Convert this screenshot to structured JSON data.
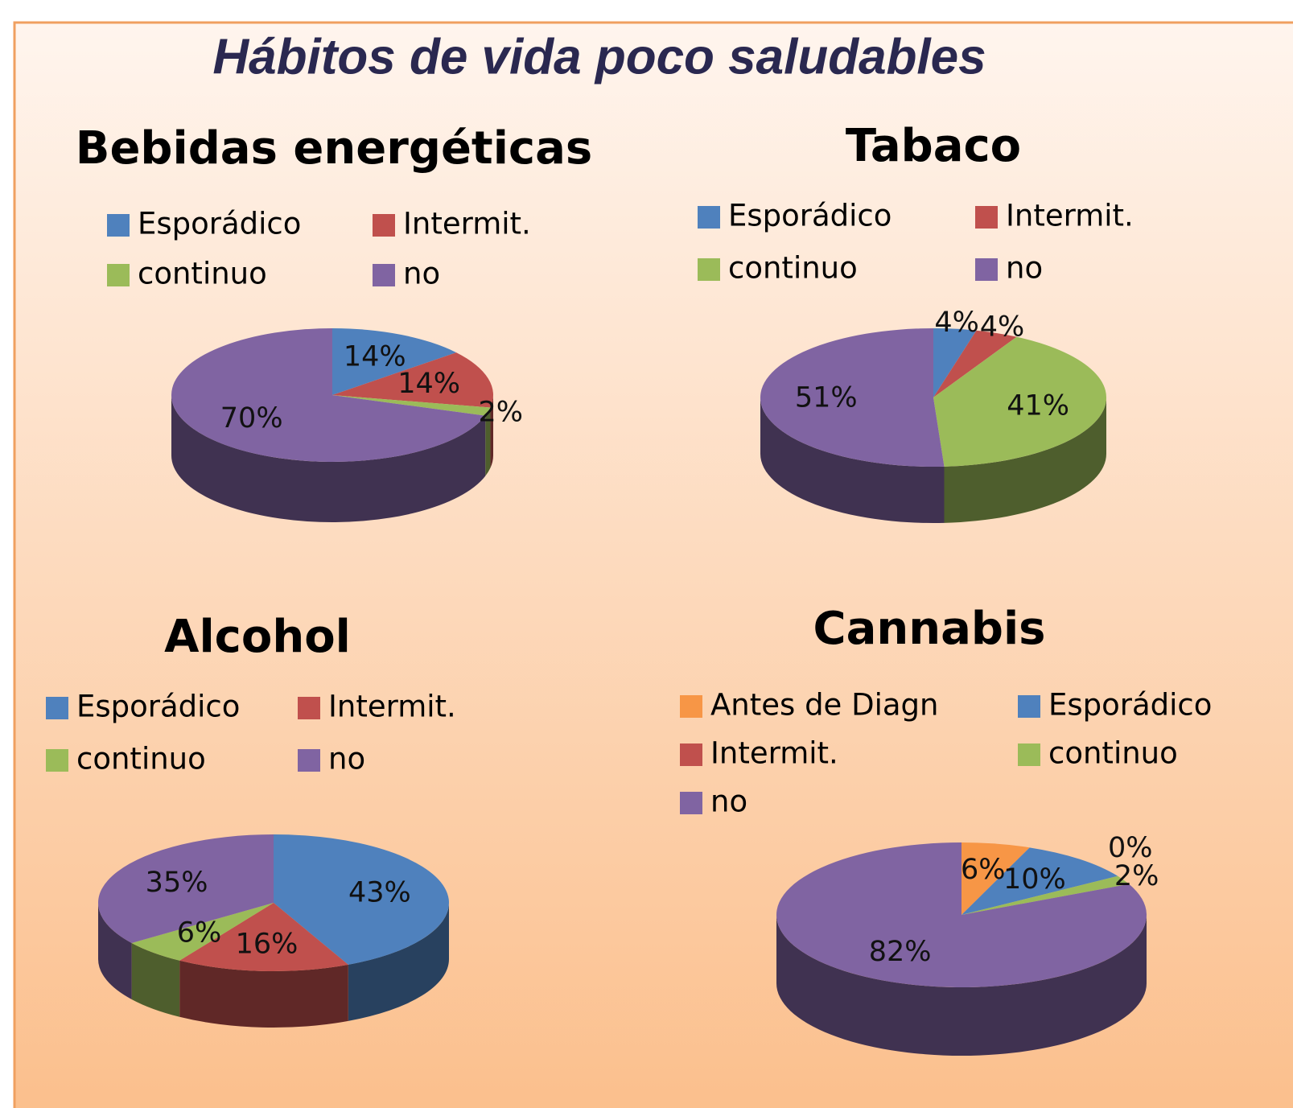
{
  "title": "Hábitos de vida poco saludables",
  "chart_data": [
    {
      "type": "pie",
      "title": "Bebidas energéticas",
      "categories": [
        "Esporádico",
        "Intermit.",
        "continuo",
        "no"
      ],
      "values": [
        14,
        14,
        2,
        70
      ],
      "value_labels": [
        "14%",
        "14%",
        "2%",
        "70%"
      ],
      "colors": [
        "#4f81bd",
        "#c0504d",
        "#9bbb59",
        "#8064a2"
      ]
    },
    {
      "type": "pie",
      "title": "Tabaco",
      "categories": [
        "Esporádico",
        "Intermit.",
        "continuo",
        "no"
      ],
      "values": [
        4,
        4,
        41,
        51
      ],
      "value_labels": [
        "4%",
        "4%",
        "41%",
        "51%"
      ],
      "colors": [
        "#4f81bd",
        "#c0504d",
        "#9bbb59",
        "#8064a2"
      ]
    },
    {
      "type": "pie",
      "title": "Alcohol",
      "categories": [
        "Esporádico",
        "Intermit.",
        "continuo",
        "no"
      ],
      "values": [
        43,
        16,
        6,
        35
      ],
      "value_labels": [
        "43%",
        "16%",
        "6%",
        "35%"
      ],
      "colors": [
        "#4f81bd",
        "#c0504d",
        "#9bbb59",
        "#8064a2"
      ]
    },
    {
      "type": "pie",
      "title": "Cannabis",
      "categories": [
        "Antes de Diagn",
        "Esporádico",
        "Intermit.",
        "continuo",
        "no"
      ],
      "values": [
        6,
        10,
        0,
        2,
        82
      ],
      "value_labels": [
        "6%",
        "10%",
        "0%",
        "2%",
        "82%"
      ],
      "colors": [
        "#f79646",
        "#4f81bd",
        "#c0504d",
        "#9bbb59",
        "#8064a2"
      ]
    }
  ]
}
